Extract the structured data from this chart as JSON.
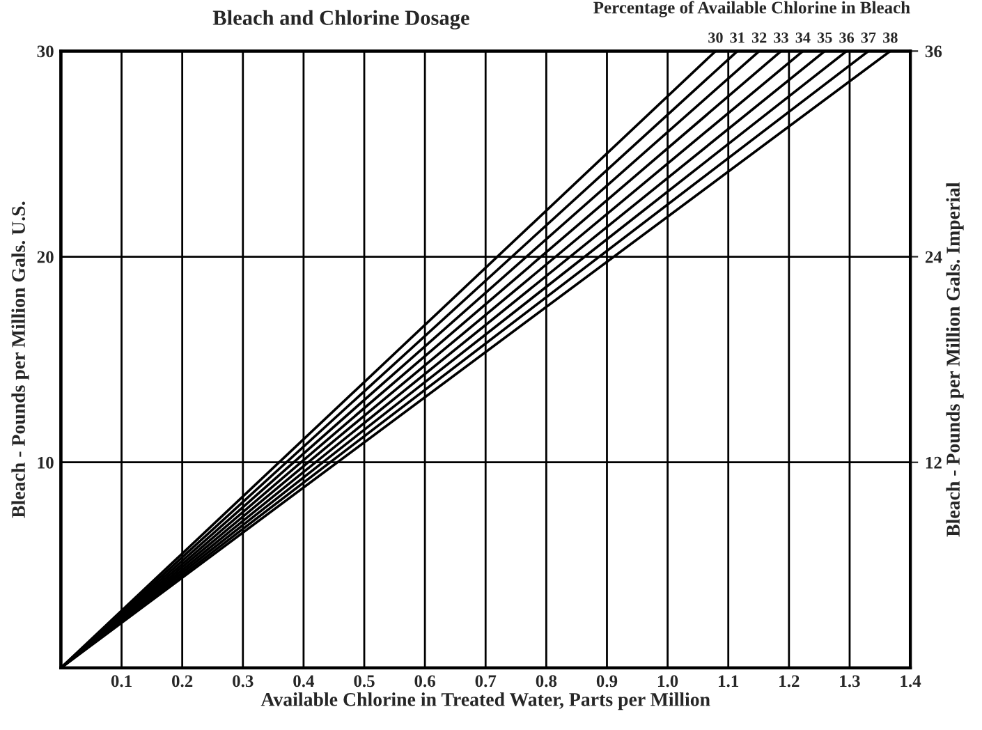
{
  "chart_data": {
    "type": "line",
    "title": "Bleach and Chlorine Dosage",
    "annotations": [
      "Percentage of Available Chlorine in Bleach"
    ],
    "xlabel": "Available Chlorine in Treated Water, Parts per Million",
    "ylabel": "Bleach - Pounds per Million Gals. U.S.",
    "y2label": "Bleach - Pounds per Million Gals. Imperial",
    "series": [
      {
        "name": "30",
        "color": "#000000",
        "x": [
          0,
          1.079
        ],
        "values": [
          0,
          30
        ]
      },
      {
        "name": "31",
        "color": "#000000",
        "x": [
          0,
          1.115
        ],
        "values": [
          0,
          30
        ]
      },
      {
        "name": "32",
        "color": "#000000",
        "x": [
          0,
          1.151
        ],
        "values": [
          0,
          30
        ]
      },
      {
        "name": "33",
        "color": "#000000",
        "x": [
          0,
          1.187
        ],
        "values": [
          0,
          30
        ]
      },
      {
        "name": "34",
        "color": "#000000",
        "x": [
          0,
          1.223
        ],
        "values": [
          0,
          30
        ]
      },
      {
        "name": "35",
        "color": "#000000",
        "x": [
          0,
          1.259
        ],
        "values": [
          0,
          30
        ]
      },
      {
        "name": "36",
        "color": "#000000",
        "x": [
          0,
          1.295
        ],
        "values": [
          0,
          30
        ]
      },
      {
        "name": "37",
        "color": "#000000",
        "x": [
          0,
          1.331
        ],
        "values": [
          0,
          30
        ]
      },
      {
        "name": "38",
        "color": "#000000",
        "x": [
          0,
          1.367
        ],
        "values": [
          0,
          30
        ]
      }
    ],
    "xlim": [
      0,
      1.4
    ],
    "xticks": [
      0.1,
      0.2,
      0.3,
      0.4,
      0.5,
      0.6,
      0.7,
      0.8,
      0.9,
      {
        "value": 1.0,
        "label": "1.0"
      },
      1.1,
      1.2,
      1.3,
      1.4
    ],
    "ylim": [
      0,
      30
    ],
    "yticks": [
      10,
      20,
      30
    ],
    "y2lim": [
      0,
      36
    ],
    "y2ticks": [
      12,
      24,
      36
    ],
    "grid": true,
    "legend": false
  }
}
